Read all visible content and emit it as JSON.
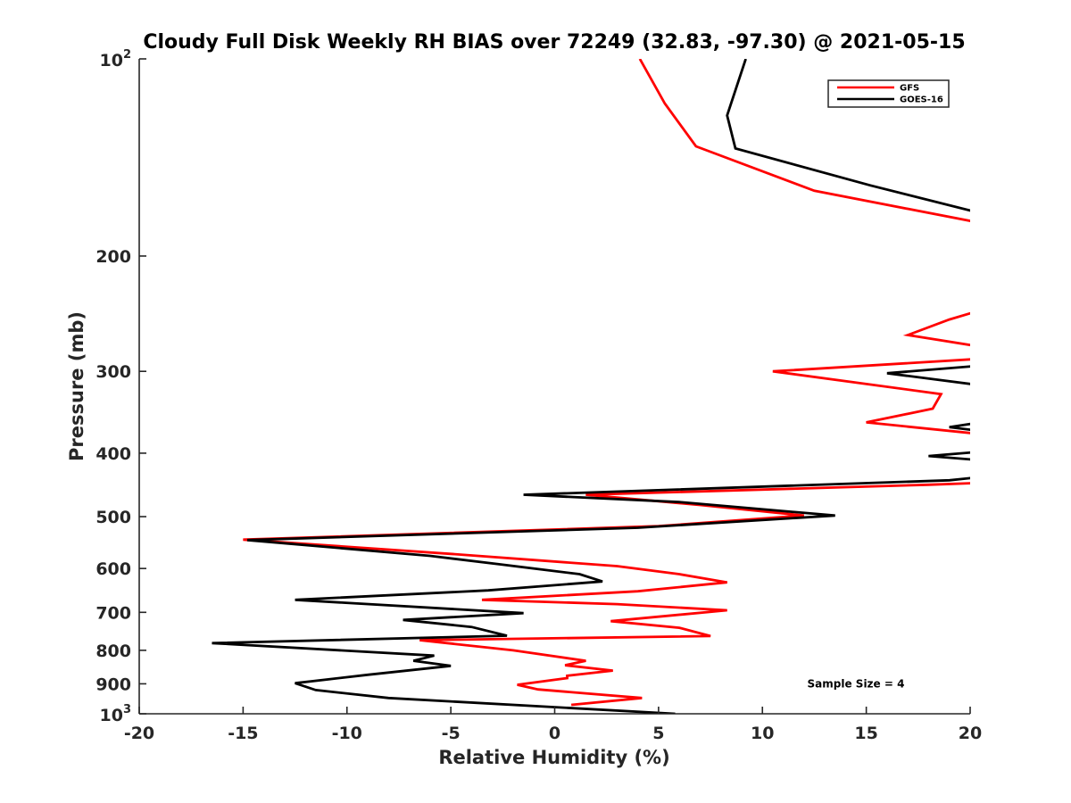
{
  "chart_data": {
    "type": "line",
    "title": "Cloudy Full Disk Weekly RH BIAS over 72249 (32.83, -97.30) @ 2021-05-15",
    "xlabel": "Relative Humidity (%)",
    "ylabel": "Pressure (mb)",
    "xlim": [
      -20,
      20
    ],
    "ylim": [
      100,
      1000
    ],
    "y_scale": "log",
    "y_reversed": true,
    "grid": false,
    "legend_position": "top-right",
    "x_ticks": [
      -20,
      -15,
      -10,
      -5,
      0,
      5,
      10,
      15,
      20
    ],
    "x_tick_labels": [
      "-20",
      "-15",
      "-10",
      "-5",
      "0",
      "5",
      "10",
      "15",
      "20"
    ],
    "y_ticks": [
      100,
      200,
      300,
      400,
      500,
      600,
      700,
      800,
      900,
      1000
    ],
    "y_tick_labels": [
      {
        "base": "10",
        "exp": "2"
      },
      {
        "base": "200",
        "exp": ""
      },
      {
        "base": "300",
        "exp": ""
      },
      {
        "base": "400",
        "exp": ""
      },
      {
        "base": "500",
        "exp": ""
      },
      {
        "base": "600",
        "exp": ""
      },
      {
        "base": "700",
        "exp": ""
      },
      {
        "base": "800",
        "exp": ""
      },
      {
        "base": "900",
        "exp": ""
      },
      {
        "base": "10",
        "exp": "3"
      }
    ],
    "series": [
      {
        "name": "GFS",
        "color": "#ff0000",
        "points": [
          [
            4.1,
            100
          ],
          [
            5.3,
            117
          ],
          [
            6.8,
            136
          ],
          [
            12.5,
            159
          ],
          [
            20.5,
            178
          ],
          [
            null,
            null
          ],
          [
            20.5,
            242
          ],
          [
            19.0,
            250
          ],
          [
            17.0,
            264
          ],
          [
            20.5,
            275
          ],
          [
            null,
            null
          ],
          [
            20.5,
            287
          ],
          [
            10.5,
            300
          ],
          [
            18.6,
            325
          ],
          [
            18.2,
            342
          ],
          [
            15.0,
            359
          ],
          [
            20.5,
            374
          ],
          [
            null,
            null
          ],
          [
            20.5,
            444
          ],
          [
            18.0,
            447
          ],
          [
            1.5,
            463
          ],
          [
            7.0,
            480
          ],
          [
            12.0,
            498
          ],
          [
            5.0,
            517
          ],
          [
            -15.0,
            542
          ],
          [
            -5.0,
            570
          ],
          [
            3.0,
            595
          ],
          [
            6.0,
            612
          ],
          [
            8.3,
            630
          ],
          [
            4.0,
            650
          ],
          [
            -3.5,
            670
          ],
          [
            3.0,
            680
          ],
          [
            8.3,
            695
          ],
          [
            2.7,
            722
          ],
          [
            6.0,
            739
          ],
          [
            7.5,
            761
          ],
          [
            -6.5,
            772
          ],
          [
            -2.0,
            800
          ],
          [
            1.5,
            830
          ],
          [
            0.5,
            843
          ],
          [
            2.8,
            859
          ],
          [
            0.6,
            875
          ],
          [
            0.6,
            882
          ],
          [
            -1.8,
            903
          ],
          [
            -0.8,
            918
          ],
          [
            4.2,
            946
          ],
          [
            0.8,
            969
          ]
        ]
      },
      {
        "name": "GOES-16",
        "color": "#000000",
        "points": [
          [
            9.2,
            100
          ],
          [
            8.3,
            122
          ],
          [
            8.7,
            137
          ],
          [
            15.2,
            156
          ],
          [
            20.5,
            172
          ],
          [
            null,
            null
          ],
          [
            20.5,
            294
          ],
          [
            16.0,
            302
          ],
          [
            20.5,
            315
          ],
          [
            null,
            null
          ],
          [
            20.5,
            359
          ],
          [
            19.0,
            365
          ],
          [
            20.5,
            370
          ],
          [
            null,
            null
          ],
          [
            20.5,
            398
          ],
          [
            18.0,
            404
          ],
          [
            20.5,
            410
          ],
          [
            null,
            null
          ],
          [
            20.5,
            435
          ],
          [
            19.0,
            440
          ],
          [
            -1.5,
            463
          ],
          [
            6.0,
            475
          ],
          [
            13.5,
            498
          ],
          [
            4.0,
            520
          ],
          [
            -14.8,
            543
          ],
          [
            -6.0,
            574
          ],
          [
            -2.5,
            592
          ],
          [
            1.2,
            612
          ],
          [
            2.3,
            628
          ],
          [
            -3.2,
            648
          ],
          [
            -12.5,
            670
          ],
          [
            -1.5,
            702
          ],
          [
            -7.3,
            719
          ],
          [
            -4.0,
            737
          ],
          [
            -2.3,
            760
          ],
          [
            -16.5,
            780
          ],
          [
            -5.8,
            815
          ],
          [
            -6.8,
            830
          ],
          [
            -5.0,
            845
          ],
          [
            -9.0,
            872
          ],
          [
            -12.5,
            898
          ],
          [
            -11.5,
            920
          ],
          [
            -8.0,
            946
          ],
          [
            5.8,
            1000
          ]
        ]
      }
    ],
    "annotations": [
      {
        "text": "Sample Size = 4",
        "x": 14.5,
        "y": 900
      }
    ]
  }
}
